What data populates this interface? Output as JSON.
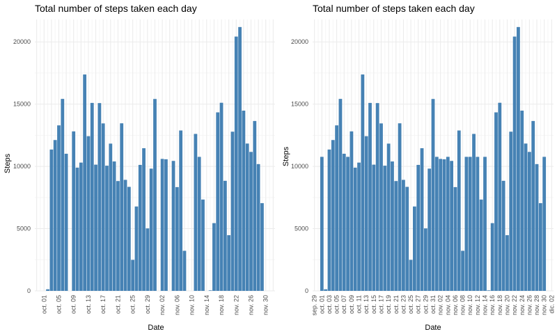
{
  "chart_data": [
    {
      "type": "bar",
      "title": "Total number of steps taken each day",
      "xlabel": "Date",
      "ylabel": "Steps",
      "bar_color": "#4682B4",
      "x_range": [
        "2012-09-29",
        "2012-12-02"
      ],
      "ylim": [
        0,
        21800
      ],
      "y_ticks": [
        0,
        5000,
        10000,
        15000,
        20000
      ],
      "x_tick_labels": [
        "sep. 29",
        "oct. 01",
        "oct. 03",
        "oct. 05",
        "oct. 07",
        "oct. 09",
        "oct. 11",
        "oct. 13",
        "oct. 15",
        "oct. 17",
        "oct. 19",
        "oct. 21",
        "oct. 23",
        "oct. 25",
        "oct. 27",
        "oct. 29",
        "oct. 31",
        "nov. 02",
        "nov. 04",
        "nov. 06",
        "nov. 08",
        "nov. 10",
        "nov. 12",
        "nov. 14",
        "nov. 16",
        "nov. 18",
        "nov. 20",
        "nov. 22",
        "nov. 24",
        "nov. 26",
        "nov. 28",
        "nov. 30",
        "dic. 02"
      ],
      "x_tick_labels_shown": [
        false,
        true,
        false,
        true,
        false,
        true,
        false,
        true,
        false,
        true,
        false,
        true,
        false,
        true,
        false,
        true,
        false,
        true,
        false,
        true,
        false,
        true,
        false,
        true,
        false,
        true,
        false,
        true,
        false,
        true,
        false,
        true,
        false
      ],
      "x": [
        "2012-10-01",
        "2012-10-02",
        "2012-10-03",
        "2012-10-04",
        "2012-10-05",
        "2012-10-06",
        "2012-10-07",
        "2012-10-08",
        "2012-10-09",
        "2012-10-10",
        "2012-10-11",
        "2012-10-12",
        "2012-10-13",
        "2012-10-14",
        "2012-10-15",
        "2012-10-16",
        "2012-10-17",
        "2012-10-18",
        "2012-10-19",
        "2012-10-20",
        "2012-10-21",
        "2012-10-22",
        "2012-10-23",
        "2012-10-24",
        "2012-10-25",
        "2012-10-26",
        "2012-10-27",
        "2012-10-28",
        "2012-10-29",
        "2012-10-30",
        "2012-10-31",
        "2012-11-01",
        "2012-11-02",
        "2012-11-03",
        "2012-11-04",
        "2012-11-05",
        "2012-11-06",
        "2012-11-07",
        "2012-11-08",
        "2012-11-09",
        "2012-11-10",
        "2012-11-11",
        "2012-11-12",
        "2012-11-13",
        "2012-11-14",
        "2012-11-15",
        "2012-11-16",
        "2012-11-17",
        "2012-11-18",
        "2012-11-19",
        "2012-11-20",
        "2012-11-21",
        "2012-11-22",
        "2012-11-23",
        "2012-11-24",
        "2012-11-25",
        "2012-11-26",
        "2012-11-27",
        "2012-11-28",
        "2012-11-29",
        "2012-11-30"
      ],
      "values": [
        0,
        126,
        11352,
        12116,
        13294,
        15420,
        11015,
        0,
        12811,
        9900,
        10304,
        17382,
        12426,
        15098,
        10139,
        15084,
        13452,
        10056,
        11829,
        10395,
        8821,
        13460,
        8918,
        8355,
        2492,
        6778,
        10119,
        11458,
        5018,
        9819,
        15414,
        0,
        10600,
        10571,
        0,
        10439,
        8334,
        12883,
        3219,
        0,
        0,
        12608,
        10765,
        7336,
        0,
        41,
        5441,
        14339,
        15110,
        8841,
        4472,
        12787,
        20427,
        21194,
        14478,
        11834,
        11162,
        13646,
        10183,
        7047,
        0
      ]
    },
    {
      "type": "bar",
      "title": "Total number of steps taken each day",
      "xlabel": "Date",
      "ylabel": "Steps",
      "bar_color": "#4682B4",
      "x_range": [
        "2012-09-29",
        "2012-12-02"
      ],
      "ylim": [
        0,
        21800
      ],
      "y_ticks": [
        0,
        5000,
        10000,
        15000,
        20000
      ],
      "x_tick_labels": [
        "sep. 29",
        "oct. 01",
        "oct. 03",
        "oct. 05",
        "oct. 07",
        "oct. 09",
        "oct. 11",
        "oct. 13",
        "oct. 15",
        "oct. 17",
        "oct. 19",
        "oct. 21",
        "oct. 23",
        "oct. 25",
        "oct. 27",
        "oct. 29",
        "oct. 31",
        "nov. 02",
        "nov. 04",
        "nov. 06",
        "nov. 08",
        "nov. 10",
        "nov. 12",
        "nov. 14",
        "nov. 16",
        "nov. 18",
        "nov. 20",
        "nov. 22",
        "nov. 24",
        "nov. 26",
        "nov. 28",
        "nov. 30",
        "dic. 02"
      ],
      "x_tick_labels_shown": [
        true,
        true,
        true,
        true,
        true,
        true,
        true,
        true,
        true,
        true,
        true,
        true,
        true,
        true,
        true,
        true,
        true,
        true,
        true,
        true,
        true,
        true,
        true,
        true,
        true,
        true,
        true,
        true,
        true,
        true,
        true,
        true,
        true
      ],
      "x": [
        "2012-10-01",
        "2012-10-02",
        "2012-10-03",
        "2012-10-04",
        "2012-10-05",
        "2012-10-06",
        "2012-10-07",
        "2012-10-08",
        "2012-10-09",
        "2012-10-10",
        "2012-10-11",
        "2012-10-12",
        "2012-10-13",
        "2012-10-14",
        "2012-10-15",
        "2012-10-16",
        "2012-10-17",
        "2012-10-18",
        "2012-10-19",
        "2012-10-20",
        "2012-10-21",
        "2012-10-22",
        "2012-10-23",
        "2012-10-24",
        "2012-10-25",
        "2012-10-26",
        "2012-10-27",
        "2012-10-28",
        "2012-10-29",
        "2012-10-30",
        "2012-10-31",
        "2012-11-01",
        "2012-11-02",
        "2012-11-03",
        "2012-11-04",
        "2012-11-05",
        "2012-11-06",
        "2012-11-07",
        "2012-11-08",
        "2012-11-09",
        "2012-11-10",
        "2012-11-11",
        "2012-11-12",
        "2012-11-13",
        "2012-11-14",
        "2012-11-15",
        "2012-11-16",
        "2012-11-17",
        "2012-11-18",
        "2012-11-19",
        "2012-11-20",
        "2012-11-21",
        "2012-11-22",
        "2012-11-23",
        "2012-11-24",
        "2012-11-25",
        "2012-11-26",
        "2012-11-27",
        "2012-11-28",
        "2012-11-29",
        "2012-11-30"
      ],
      "values": [
        10766,
        126,
        11352,
        12116,
        13294,
        15420,
        11015,
        10766,
        12811,
        9900,
        10304,
        17382,
        12426,
        15098,
        10139,
        15084,
        13452,
        10056,
        11829,
        10395,
        8821,
        13460,
        8918,
        8355,
        2492,
        6778,
        10119,
        11458,
        5018,
        9819,
        15414,
        10766,
        10600,
        10571,
        10766,
        10439,
        8334,
        12883,
        3219,
        10766,
        10766,
        12608,
        10765,
        7336,
        10766,
        41,
        5441,
        14339,
        15110,
        8841,
        4472,
        12787,
        20427,
        21194,
        14478,
        11834,
        11162,
        13646,
        10183,
        7047,
        10766
      ]
    }
  ]
}
